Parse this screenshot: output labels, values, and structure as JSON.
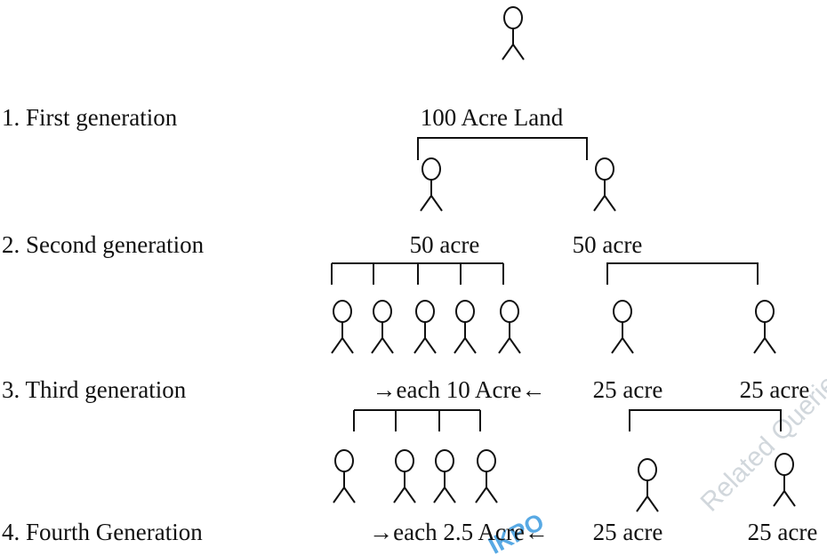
{
  "generations": [
    {
      "label": "1. First generation",
      "lands": [
        "100 Acre Land"
      ]
    },
    {
      "label": "2. Second generation",
      "lands": [
        "50 acre",
        "50 acre"
      ]
    },
    {
      "label": "3. Third generation",
      "lands": [
        "→each 10 Acre←",
        "25 acre",
        "25 acre"
      ]
    },
    {
      "label": "4. Fourth Generation",
      "lands": [
        "→each 2.5 Acre←",
        "25 acre",
        "25 acre"
      ]
    }
  ],
  "watermark": {
    "logo": "IKPO",
    "tagline": "Related Queries"
  }
}
